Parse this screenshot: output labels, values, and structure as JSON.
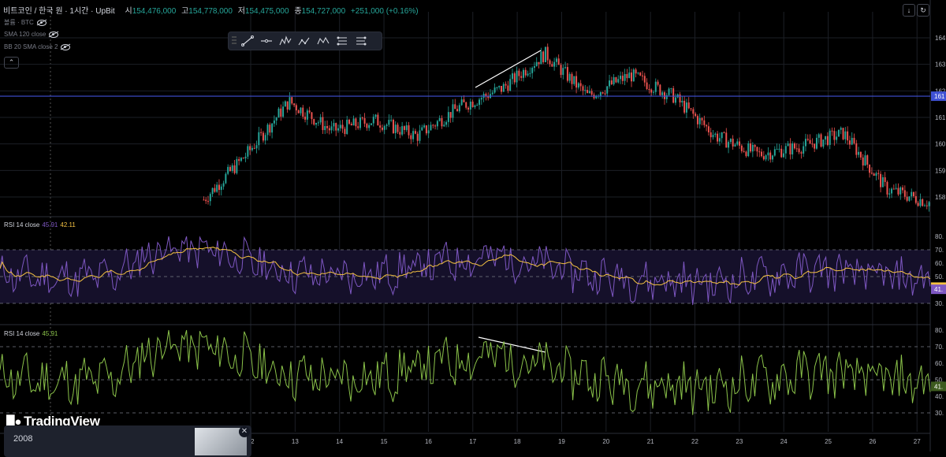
{
  "header": {
    "title": "비트코인 / 한국 원 · 1시간 · UpBit",
    "ohlc": [
      {
        "k": "시",
        "v": "154,476,000"
      },
      {
        "k": "고",
        "v": "154,778,000"
      },
      {
        "k": "저",
        "v": "154,475,000"
      },
      {
        "k": "종",
        "v": "154,727,000"
      }
    ],
    "change": "+251,000 (+0.16%)"
  },
  "indicators": [
    "볼륨 · BTC",
    "SMA 120 close",
    "BB 20 SMA close 2"
  ],
  "colors": {
    "up": "#26a69a",
    "down": "#ef5350",
    "hline": "#3f51d4",
    "rsi": "#7e57c2",
    "rsi_ma": "#f5c242",
    "rsi2": "#8bc34a",
    "grid": "#1c1f26"
  },
  "toolbar_icons": [
    "trend-line-icon",
    "horizontal-ray-icon",
    "pattern-icon",
    "elliott-abc-icon",
    "xabcd-icon",
    "long-position-icon",
    "short-position-icon"
  ],
  "price_axis": {
    "labels": [
      "164",
      "163",
      "162",
      "161",
      "160",
      "159",
      "158"
    ],
    "marker": "161"
  },
  "rsi1": {
    "label": "RSI 14 close",
    "value": "45.91",
    "ma_value": "42.11",
    "ticks": [
      "80.",
      "70.",
      "60.",
      "50.",
      "40.",
      "30."
    ],
    "marker": "43.",
    "marker2": "41."
  },
  "rsi2": {
    "label": "RSI 14 close",
    "value": "45.91",
    "ticks": [
      "80.",
      "70.",
      "60.",
      "50.",
      "40.",
      "30."
    ],
    "marker": "41."
  },
  "x_axis": {
    "labels": [
      "12",
      "13",
      "14",
      "15",
      "16",
      "17",
      "18",
      "19",
      "20",
      "21",
      "22",
      "23",
      "24",
      "25",
      "26",
      "27"
    ]
  },
  "chart_data": {
    "type": "candlestick",
    "x": [
      "12",
      "13",
      "14",
      "15",
      "16",
      "17",
      "18",
      "19",
      "20",
      "21",
      "22",
      "23",
      "24",
      "25",
      "26",
      "27"
    ],
    "close_path": [
      157.9,
      159.6,
      161.6,
      160.5,
      160.9,
      160.3,
      161.4,
      162.1,
      163.4,
      161.8,
      162.6,
      161.8,
      160.3,
      159.6,
      159.9,
      160.4,
      158.3,
      157.8
    ],
    "y_axis_ticks": [
      164,
      163,
      162,
      161,
      160,
      159,
      158
    ],
    "horizontal_line": 161.8,
    "rsi_ticks": [
      80,
      70,
      60,
      50,
      40,
      30
    ],
    "rsi_levels": {
      "upper": 70,
      "lower": 30
    },
    "rsi_latest": 45.91,
    "rsi_ma_latest": 42.11
  },
  "branding": {
    "logo": "TradingView"
  },
  "popup": {
    "title": "2008"
  }
}
